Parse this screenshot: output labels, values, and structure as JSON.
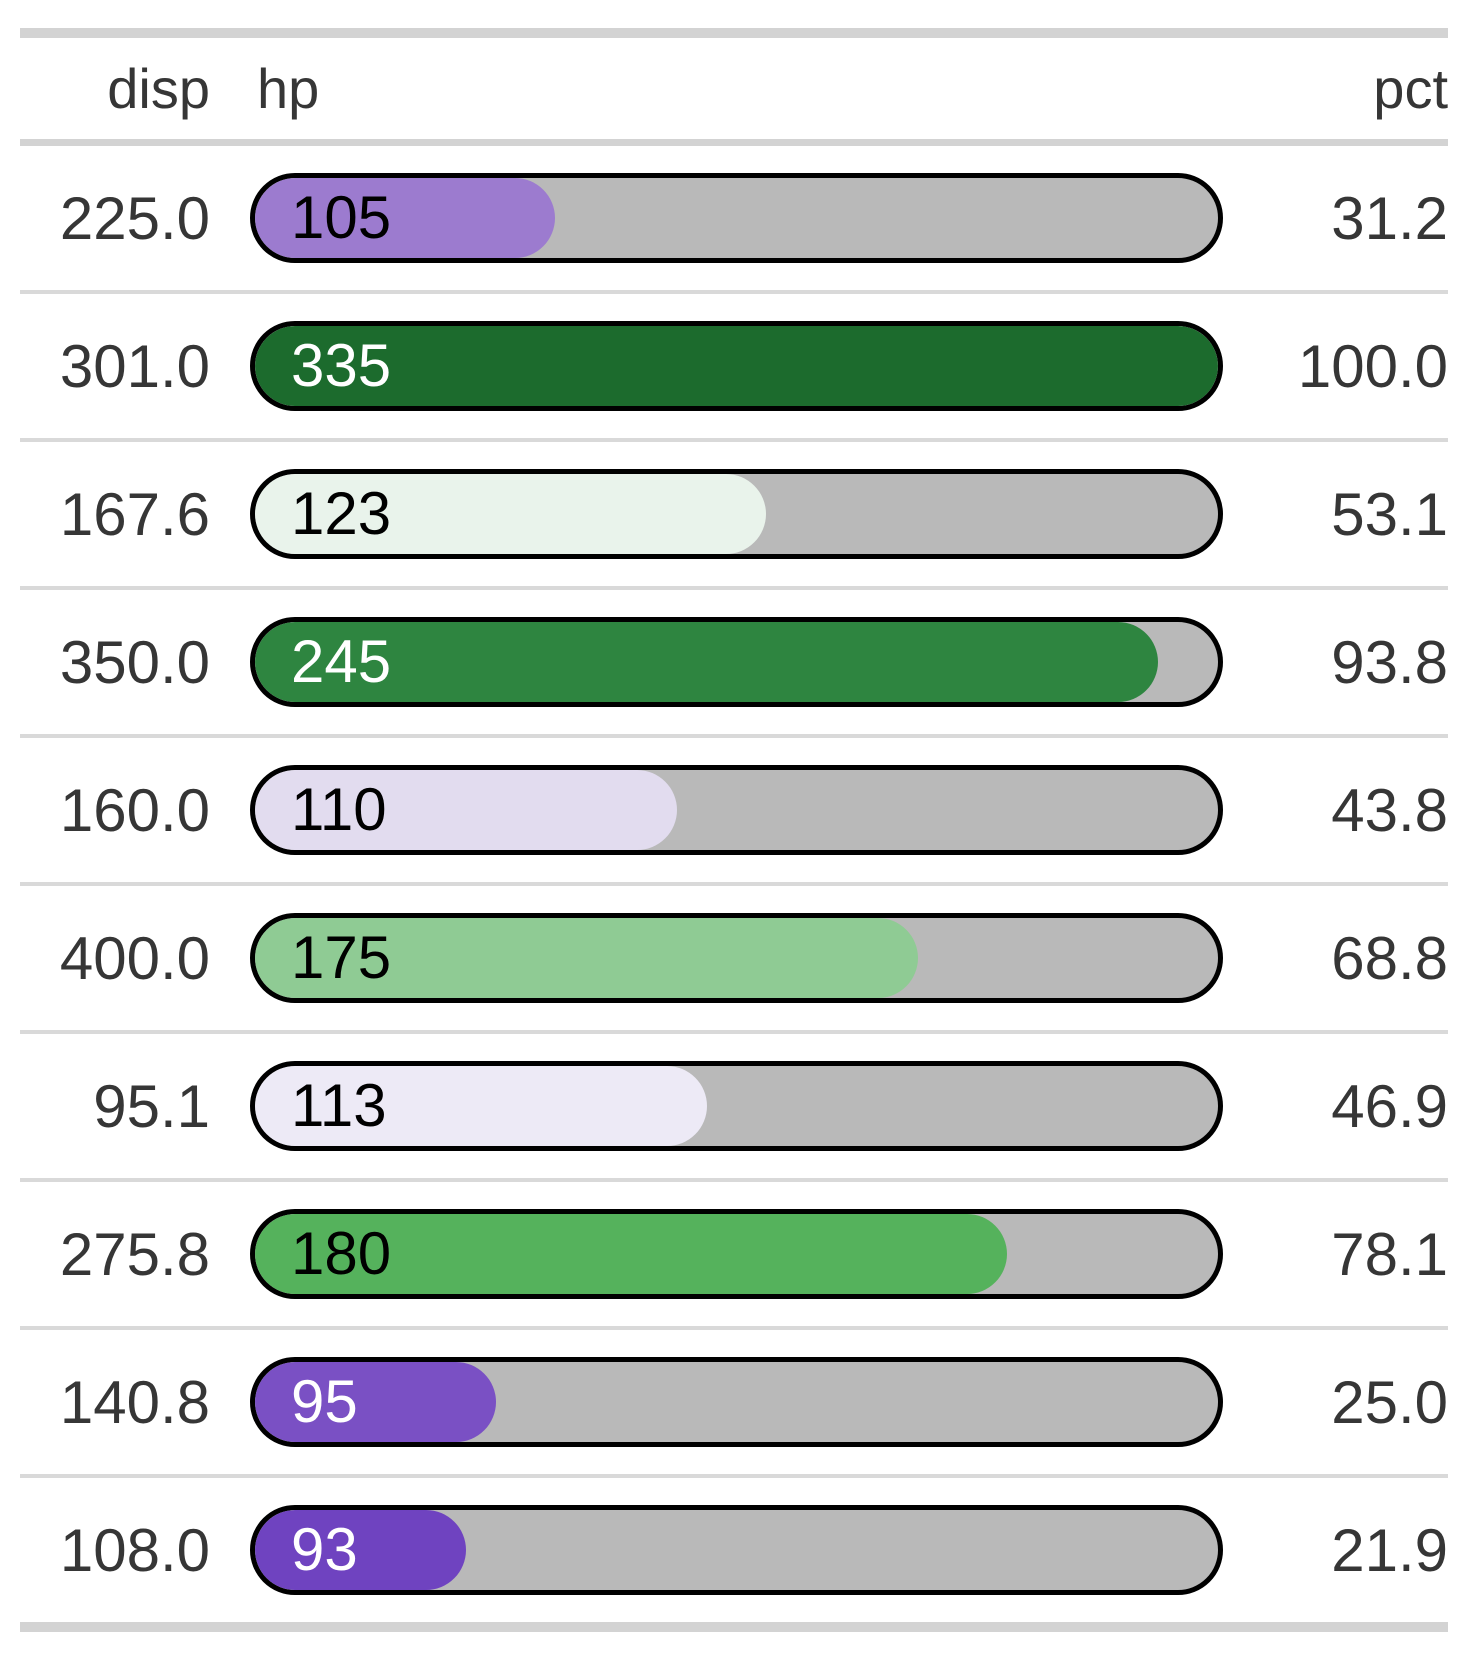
{
  "table": {
    "header": {
      "disp": "disp",
      "hp": "hp",
      "pct": "pct"
    },
    "rows": [
      {
        "disp": "225.0",
        "hp": "105",
        "pct": "31.2",
        "fill_pct": 31.2,
        "fill_color": "#9C7BCF",
        "label_color": "#000000"
      },
      {
        "disp": "301.0",
        "hp": "335",
        "pct": "100.0",
        "fill_pct": 100.0,
        "fill_color": "#1C6B2D",
        "label_color": "#FFFFFF"
      },
      {
        "disp": "167.6",
        "hp": "123",
        "pct": "53.1",
        "fill_pct": 53.1,
        "fill_color": "#E9F3EB",
        "label_color": "#000000"
      },
      {
        "disp": "350.0",
        "hp": "245",
        "pct": "93.8",
        "fill_pct": 93.8,
        "fill_color": "#2E8540",
        "label_color": "#FFFFFF"
      },
      {
        "disp": "160.0",
        "hp": "110",
        "pct": "43.8",
        "fill_pct": 43.8,
        "fill_color": "#E2DCEF",
        "label_color": "#000000"
      },
      {
        "disp": "400.0",
        "hp": "175",
        "pct": "68.8",
        "fill_pct": 68.8,
        "fill_color": "#8FCB94",
        "label_color": "#000000"
      },
      {
        "disp": "95.1",
        "hp": "113",
        "pct": "46.9",
        "fill_pct": 46.9,
        "fill_color": "#EDEAF6",
        "label_color": "#000000"
      },
      {
        "disp": "275.8",
        "hp": "180",
        "pct": "78.1",
        "fill_pct": 78.1,
        "fill_color": "#55B25C",
        "label_color": "#000000"
      },
      {
        "disp": "140.8",
        "hp": "95",
        "pct": "25.0",
        "fill_pct": 25.0,
        "fill_color": "#7A50C4",
        "label_color": "#FFFFFF"
      },
      {
        "disp": "108.0",
        "hp": "93",
        "pct": "21.9",
        "fill_pct": 21.9,
        "fill_color": "#6F43C0",
        "label_color": "#FFFFFF"
      }
    ],
    "style": {
      "track_color": "#B9B9B9",
      "bar_border_color": "#000000",
      "separator_color": "#D9D9D9",
      "rule_color": "#D3D3D3",
      "text_color": "#363636",
      "background": "#FFFFFF"
    }
  },
  "chart_data": {
    "type": "bar",
    "orientation": "horizontal",
    "title": "",
    "xlabel": "",
    "ylabel": "",
    "columns": [
      "disp",
      "hp",
      "pct"
    ],
    "categories_disp": [
      225.0,
      301.0,
      167.6,
      350.0,
      160.0,
      400.0,
      95.1,
      275.8,
      140.8,
      108.0
    ],
    "series": [
      {
        "name": "hp",
        "values": [
          105,
          335,
          123,
          245,
          110,
          175,
          113,
          180,
          95,
          93
        ]
      },
      {
        "name": "pct",
        "values": [
          31.2,
          100.0,
          53.1,
          93.8,
          43.8,
          68.8,
          46.9,
          78.1,
          25.0,
          21.9
        ]
      }
    ],
    "bar_fill_axis": "pct",
    "xlim": [
      0,
      100
    ],
    "grid": false,
    "legend": false,
    "color_scale": "diverging purple (low pct) to green (high pct), midpoint 50"
  }
}
